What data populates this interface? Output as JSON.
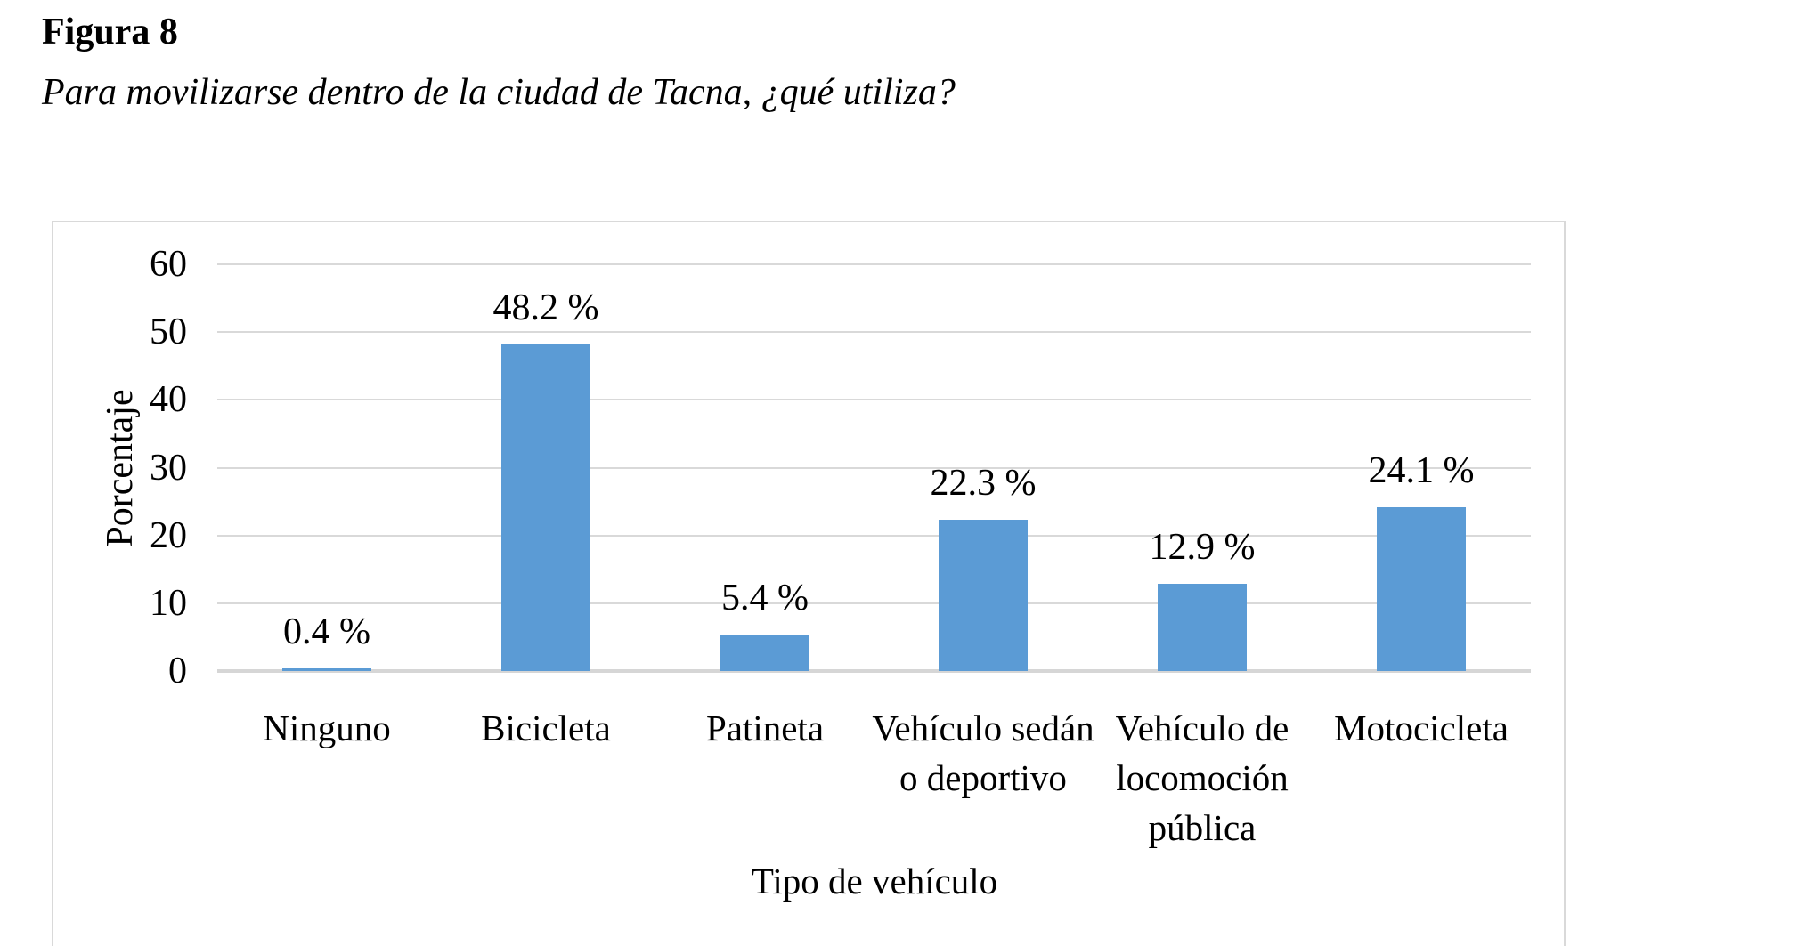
{
  "page": {
    "background": "#ffffff"
  },
  "figure": {
    "label": "Figura 8",
    "caption": "Para movilizarse dentro de la ciudad de Tacna, ¿qué utiliza?"
  },
  "chart_data": {
    "type": "bar",
    "categories": [
      "Ninguno",
      "Bicicleta",
      "Patineta",
      "Vehículo sedán o deportivo",
      "Vehículo de locomoción pública",
      "Motocicleta"
    ],
    "values": [
      0.4,
      48.2,
      5.4,
      22.3,
      12.9,
      24.1
    ],
    "value_labels": [
      "0.4 %",
      "48.2 %",
      "5.4 %",
      "22.3 %",
      "12.9 %",
      "24.1 %"
    ],
    "xlabel": "Tipo de vehículo",
    "ylabel": "Porcentaje",
    "ylim": [
      0,
      60
    ],
    "yticks": [
      0,
      10,
      20,
      30,
      40,
      50,
      60
    ],
    "grid": true,
    "legend": "none",
    "bar_color": "#5B9BD5",
    "gridline_color": "#D9D9D9",
    "axis_line_color": "#D6D6D6",
    "frame_color": "#D9D9D9"
  }
}
